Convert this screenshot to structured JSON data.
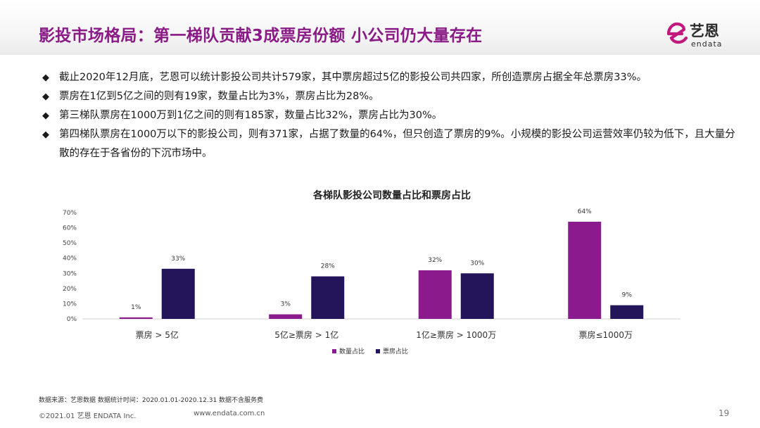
{
  "header": {
    "title": "影投市场格局：第一梯队贡献3成票房份额  小公司仍大量存在",
    "logo_cn": "艺恩",
    "logo_en": "endata",
    "logo_color": "#c2197d"
  },
  "bullets": [
    "截止2020年12月底，艺恩可以统计影投公司共计579家，其中票房超过5亿的影投公司共四家，所创造票房占据全年总票房33%。",
    "票房在1亿到5亿之间的则有19家，数量占比为3%，票房占比为28%。",
    "第三梯队票房在1000万到1亿之间的则有185家，数量占比32%，票房占比为30%。",
    "第四梯队票房在1000万以下的影投公司，则有371家，占据了数量的64%，但只创造了票房的9%。小规模的影投公司运营效率仍较为低下，且大量分散的存在于各省份的下沉市场中。"
  ],
  "bullet_icon": "diamond-icon",
  "chart_data": {
    "type": "bar",
    "title": "各梯队影投公司数量占比和票房占比",
    "categories": [
      "票房 > 5亿",
      "5亿≥票房 > 1亿",
      "1亿≥票房 > 1000万",
      "票房≤1000万"
    ],
    "series": [
      {
        "name": "数量占比",
        "color": "#8b1a8c",
        "values": [
          1,
          3,
          32,
          64
        ],
        "labels": [
          "1%",
          "3%",
          "32%",
          "64%"
        ]
      },
      {
        "name": "票房占比",
        "color": "#24145a",
        "values": [
          33,
          28,
          30,
          9
        ],
        "labels": [
          "33%",
          "28%",
          "30%",
          "9%"
        ]
      }
    ],
    "ylim": [
      0,
      70
    ],
    "yticks": [
      "0%",
      "10%",
      "20%",
      "30%",
      "40%",
      "50%",
      "60%",
      "70%"
    ],
    "grid": false,
    "legend": "bottom-center"
  },
  "footer": {
    "source": "数据来源：艺恩数据   数据统计时间：2020.01.01-2020.12.31 数据不含服务费",
    "copyright": "©2021.01 艺恩 ENDATA Inc.",
    "url": "www.endata.com.cn",
    "page": "19"
  }
}
